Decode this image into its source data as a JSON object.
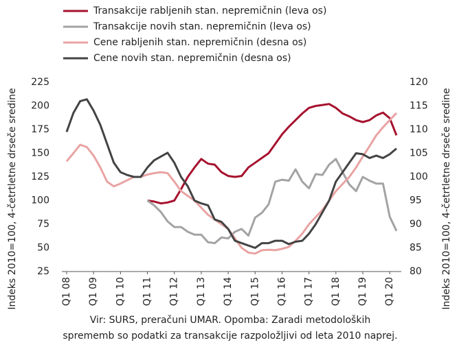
{
  "chart_data": {
    "type": "line",
    "categories": [
      "Q1 08",
      null,
      null,
      null,
      "Q1 09",
      null,
      null,
      null,
      "Q1 10",
      null,
      null,
      null,
      "Q1 11",
      null,
      null,
      null,
      "Q1 12",
      null,
      null,
      null,
      "Q1 13",
      null,
      null,
      null,
      "Q1 14",
      null,
      null,
      null,
      "Q1 15",
      null,
      null,
      null,
      "Q1 16",
      null,
      null,
      null,
      "Q1 17",
      null,
      null,
      null,
      "Q1 18",
      null,
      null,
      null,
      "Q1 19",
      null,
      null,
      null,
      "Q1 20",
      null
    ],
    "series": [
      {
        "name": "Transakcije rabljenih stan. nepremičnin (leva os)",
        "color": "#a6122e",
        "axis": "y",
        "values": [
          null,
          null,
          null,
          null,
          null,
          null,
          null,
          null,
          null,
          null,
          null,
          null,
          100,
          99,
          97,
          98,
          100,
          112,
          125,
          135,
          144,
          139,
          138,
          130,
          126,
          125,
          126,
          135,
          140,
          145,
          150,
          160,
          170,
          178,
          185,
          192,
          198,
          200,
          201,
          202,
          198,
          192,
          189,
          185,
          183,
          185,
          190,
          193,
          187,
          169
        ]
      },
      {
        "name": "Transakcije novih stan. nepremičnin (leva os)",
        "color": "#a3a3a3",
        "axis": "y",
        "values": [
          null,
          null,
          null,
          null,
          null,
          null,
          null,
          null,
          null,
          null,
          null,
          null,
          100,
          95,
          88,
          78,
          72,
          72,
          67,
          64,
          64,
          56,
          55,
          61,
          60,
          67,
          70,
          63,
          82,
          87,
          96,
          120,
          122,
          121,
          133,
          120,
          113,
          128,
          127,
          138,
          144,
          130,
          117,
          110,
          125,
          121,
          118,
          118,
          83,
          68
        ]
      },
      {
        "name": "Cene rabljenih stan. nepremičnin (desna os)",
        "color": "#e9a3a3",
        "axis": "y2",
        "values": [
          103.3,
          105,
          106.8,
          106.3,
          104.5,
          102,
          99,
          98,
          98.6,
          99.3,
          100,
          100,
          100.5,
          100.8,
          101,
          100.8,
          99,
          97,
          96,
          95,
          93.5,
          92,
          91,
          90,
          89,
          87,
          85,
          84,
          83.8,
          84.5,
          84.6,
          84.5,
          84.8,
          85.2,
          86.5,
          88,
          90,
          91.5,
          93,
          95,
          97,
          98.5,
          100,
          102,
          104.3,
          106.5,
          108.8,
          110.5,
          112,
          113.5
        ]
      },
      {
        "name": "Cene novih stan. nepremičnin (desna os)",
        "color": "#434343",
        "axis": "y2",
        "values": [
          109.5,
          113.5,
          116,
          116.4,
          114,
          111,
          107,
          103,
          101,
          100.4,
          100,
          100,
          102,
          103.5,
          104.3,
          105.1,
          103,
          100,
          98,
          95,
          94.4,
          94,
          91,
          90.5,
          89,
          86.5,
          86,
          85.5,
          85,
          86,
          86,
          86.5,
          86.5,
          85.8,
          86.3,
          86.5,
          88,
          90,
          92.5,
          95,
          99,
          101,
          103,
          105,
          104.8,
          104,
          104.5,
          104,
          104.8,
          106
        ]
      }
    ],
    "ylim": [
      25,
      225
    ],
    "yticks": [
      25,
      50,
      75,
      100,
      125,
      150,
      175,
      200,
      225
    ],
    "y2lim": [
      80,
      120
    ],
    "y2ticks": [
      80,
      85,
      90,
      95,
      100,
      105,
      110,
      115,
      120
    ],
    "ylabel": "Indeks 2010=100, 4-četrtletne drseče sredine",
    "y2label": "Indeks 2010=100, 4-četrtletne drseče sredine",
    "note": [
      "Vir: SURS, preračuni UMAR. Opomba: Zaradi metodoloških",
      "sprememb so podatki za transakcije razpoložljivi od leta 2010 naprej."
    ]
  }
}
